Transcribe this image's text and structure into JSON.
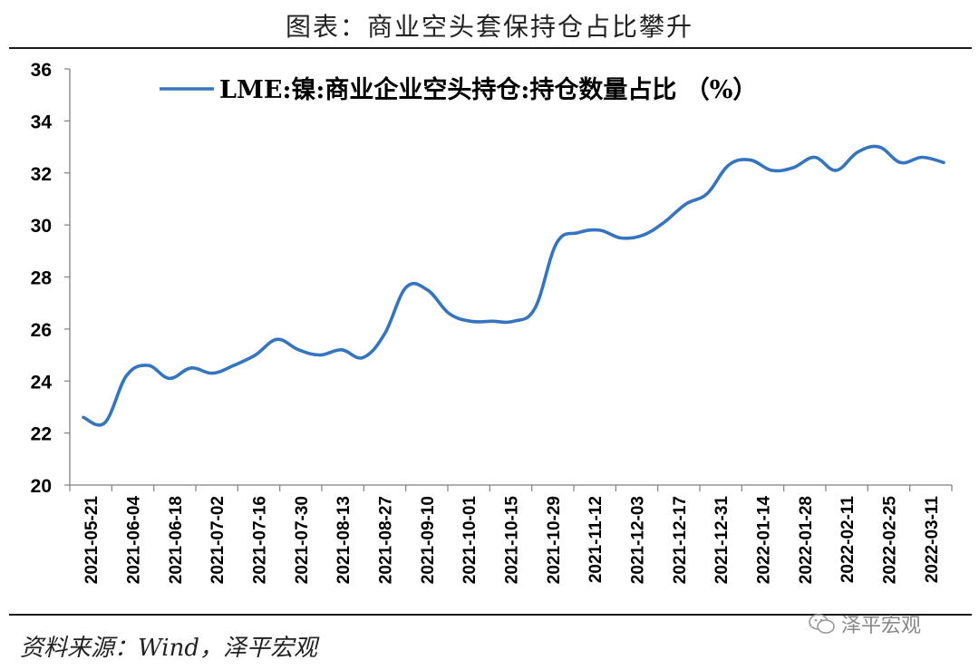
{
  "title": "图表：商业空头套保持仓占比攀升",
  "source": "资料来源：Wind，泽平宏观",
  "watermark": "泽平宏观",
  "colors": {
    "line": "#3574bf",
    "axis": "#7f7f7f",
    "text": "#000000"
  },
  "chart_data": {
    "type": "line",
    "legend_position": "top-center",
    "grid": false,
    "ylim": [
      20,
      36
    ],
    "yticks": [
      20,
      22,
      24,
      26,
      28,
      30,
      32,
      34,
      36
    ],
    "xticks": [
      "2021-05-21",
      "2021-06-04",
      "2021-06-18",
      "2021-07-02",
      "2021-07-16",
      "2021-07-30",
      "2021-08-13",
      "2021-08-27",
      "2021-09-10",
      "2021-10-01",
      "2021-10-15",
      "2021-10-29",
      "2021-11-12",
      "2021-12-03",
      "2021-12-17",
      "2021-12-31",
      "2022-01-14",
      "2022-01-28",
      "2022-02-11",
      "2022-02-25",
      "2022-03-11"
    ],
    "series": [
      {
        "name": "LME:镍:商业企业空头持仓:持仓数量占比 （%）",
        "values": [
          22.6,
          22.4,
          24.2,
          24.6,
          24.1,
          24.5,
          24.3,
          24.6,
          25.0,
          25.6,
          25.2,
          25.0,
          25.2,
          24.9,
          25.8,
          27.6,
          27.5,
          26.6,
          26.3,
          26.3,
          26.3,
          26.8,
          29.3,
          29.7,
          29.8,
          29.5,
          29.6,
          30.1,
          30.8,
          31.2,
          32.3,
          32.5,
          32.1,
          32.2,
          32.6,
          32.1,
          32.8,
          33.0,
          32.4,
          32.6,
          32.4
        ]
      }
    ]
  }
}
